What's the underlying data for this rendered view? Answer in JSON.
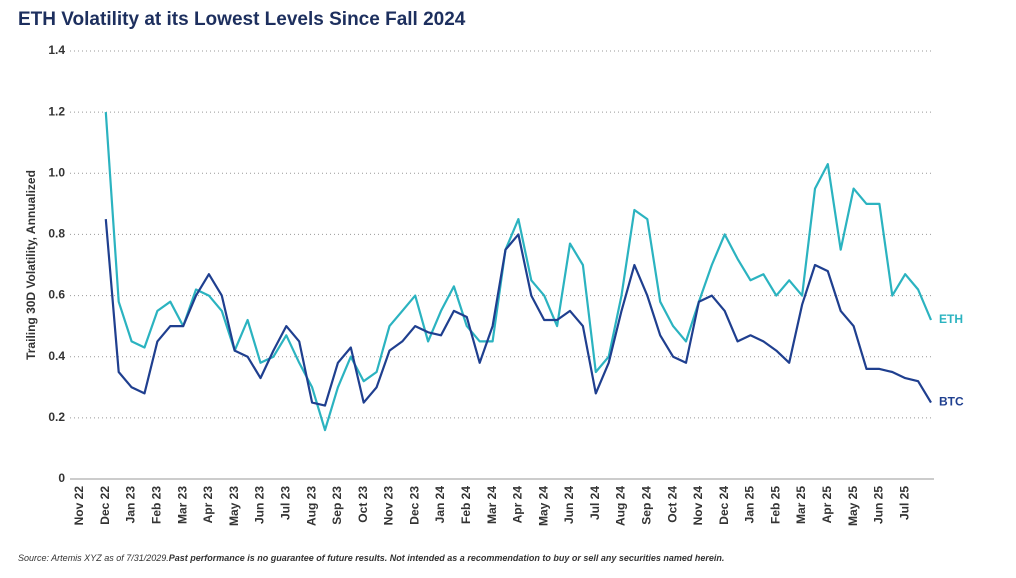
{
  "chart_data": {
    "type": "line",
    "title": "ETH Volatility at its Lowest Levels Since Fall 2024",
    "y_label": "Trailing 30D Volatility, Annualized",
    "source": "Source: Artemis XYZ as of 7/31/2029.",
    "disclaimer": "Past performance is no guarantee of future results. Not intended as a recommendation to buy or sell any securities named herein.",
    "categories": [
      "Nov 22",
      null,
      "Dec 22",
      null,
      "Jan 23",
      null,
      "Feb 23",
      null,
      "Mar 23",
      null,
      "Apr 23",
      null,
      "May 23",
      null,
      "Jun 23",
      null,
      "Jul 23",
      null,
      "Aug 23",
      null,
      "Sep 23",
      null,
      "Oct 23",
      null,
      "Nov 23",
      null,
      "Dec 23",
      null,
      "Jan 24",
      null,
      "Feb 24",
      null,
      "Mar 24",
      null,
      "Apr 24",
      null,
      "May 24",
      null,
      "Jun 24",
      null,
      "Jul 24",
      null,
      "Aug 24",
      null,
      "Sep 24",
      null,
      "Oct 24",
      null,
      "Nov 24",
      null,
      "Dec 24",
      null,
      "Jan 25",
      null,
      "Feb 25",
      null,
      "Mar 25",
      null,
      "Apr 25",
      null,
      "May 25",
      null,
      "Jun 25",
      null,
      "Jul 25",
      null,
      null
    ],
    "series": [
      {
        "name": "ETH",
        "color": "#2bb3c0",
        "values": [
          null,
          null,
          1.2,
          0.58,
          0.45,
          0.43,
          0.55,
          0.58,
          0.5,
          0.62,
          0.6,
          0.55,
          0.42,
          0.52,
          0.38,
          0.4,
          0.47,
          0.38,
          0.3,
          0.16,
          0.3,
          0.4,
          0.32,
          0.35,
          0.5,
          0.55,
          0.6,
          0.45,
          0.55,
          0.63,
          0.5,
          0.45,
          0.45,
          0.75,
          0.85,
          0.65,
          0.6,
          0.5,
          0.77,
          0.7,
          0.35,
          0.4,
          0.6,
          0.88,
          0.85,
          0.58,
          0.5,
          0.45,
          0.58,
          0.7,
          0.8,
          0.72,
          0.65,
          0.67,
          0.6,
          0.65,
          0.6,
          0.95,
          1.03,
          0.75,
          0.95,
          0.9,
          0.9,
          0.6,
          0.67,
          0.62,
          0.52
        ]
      },
      {
        "name": "BTC",
        "color": "#1f3f8f",
        "values": [
          null,
          null,
          0.85,
          0.35,
          0.3,
          0.28,
          0.45,
          0.5,
          0.5,
          0.6,
          0.67,
          0.6,
          0.42,
          0.4,
          0.33,
          0.42,
          0.5,
          0.45,
          0.25,
          0.24,
          0.38,
          0.43,
          0.25,
          0.3,
          0.42,
          0.45,
          0.5,
          0.48,
          0.47,
          0.55,
          0.53,
          0.38,
          0.5,
          0.75,
          0.8,
          0.6,
          0.52,
          0.52,
          0.55,
          0.5,
          0.28,
          0.38,
          0.55,
          0.7,
          0.6,
          0.47,
          0.4,
          0.38,
          0.58,
          0.6,
          0.55,
          0.45,
          0.47,
          0.45,
          0.42,
          0.38,
          0.57,
          0.7,
          0.68,
          0.55,
          0.5,
          0.36,
          0.36,
          0.35,
          0.33,
          0.32,
          0.25
        ]
      }
    ],
    "ylim": [
      0,
      1.4
    ],
    "yticks": [
      0,
      0.2,
      0.4,
      0.6,
      0.8,
      {
        "value": 1,
        "label": "1.0"
      },
      1.2,
      1.4
    ],
    "grid": true
  }
}
